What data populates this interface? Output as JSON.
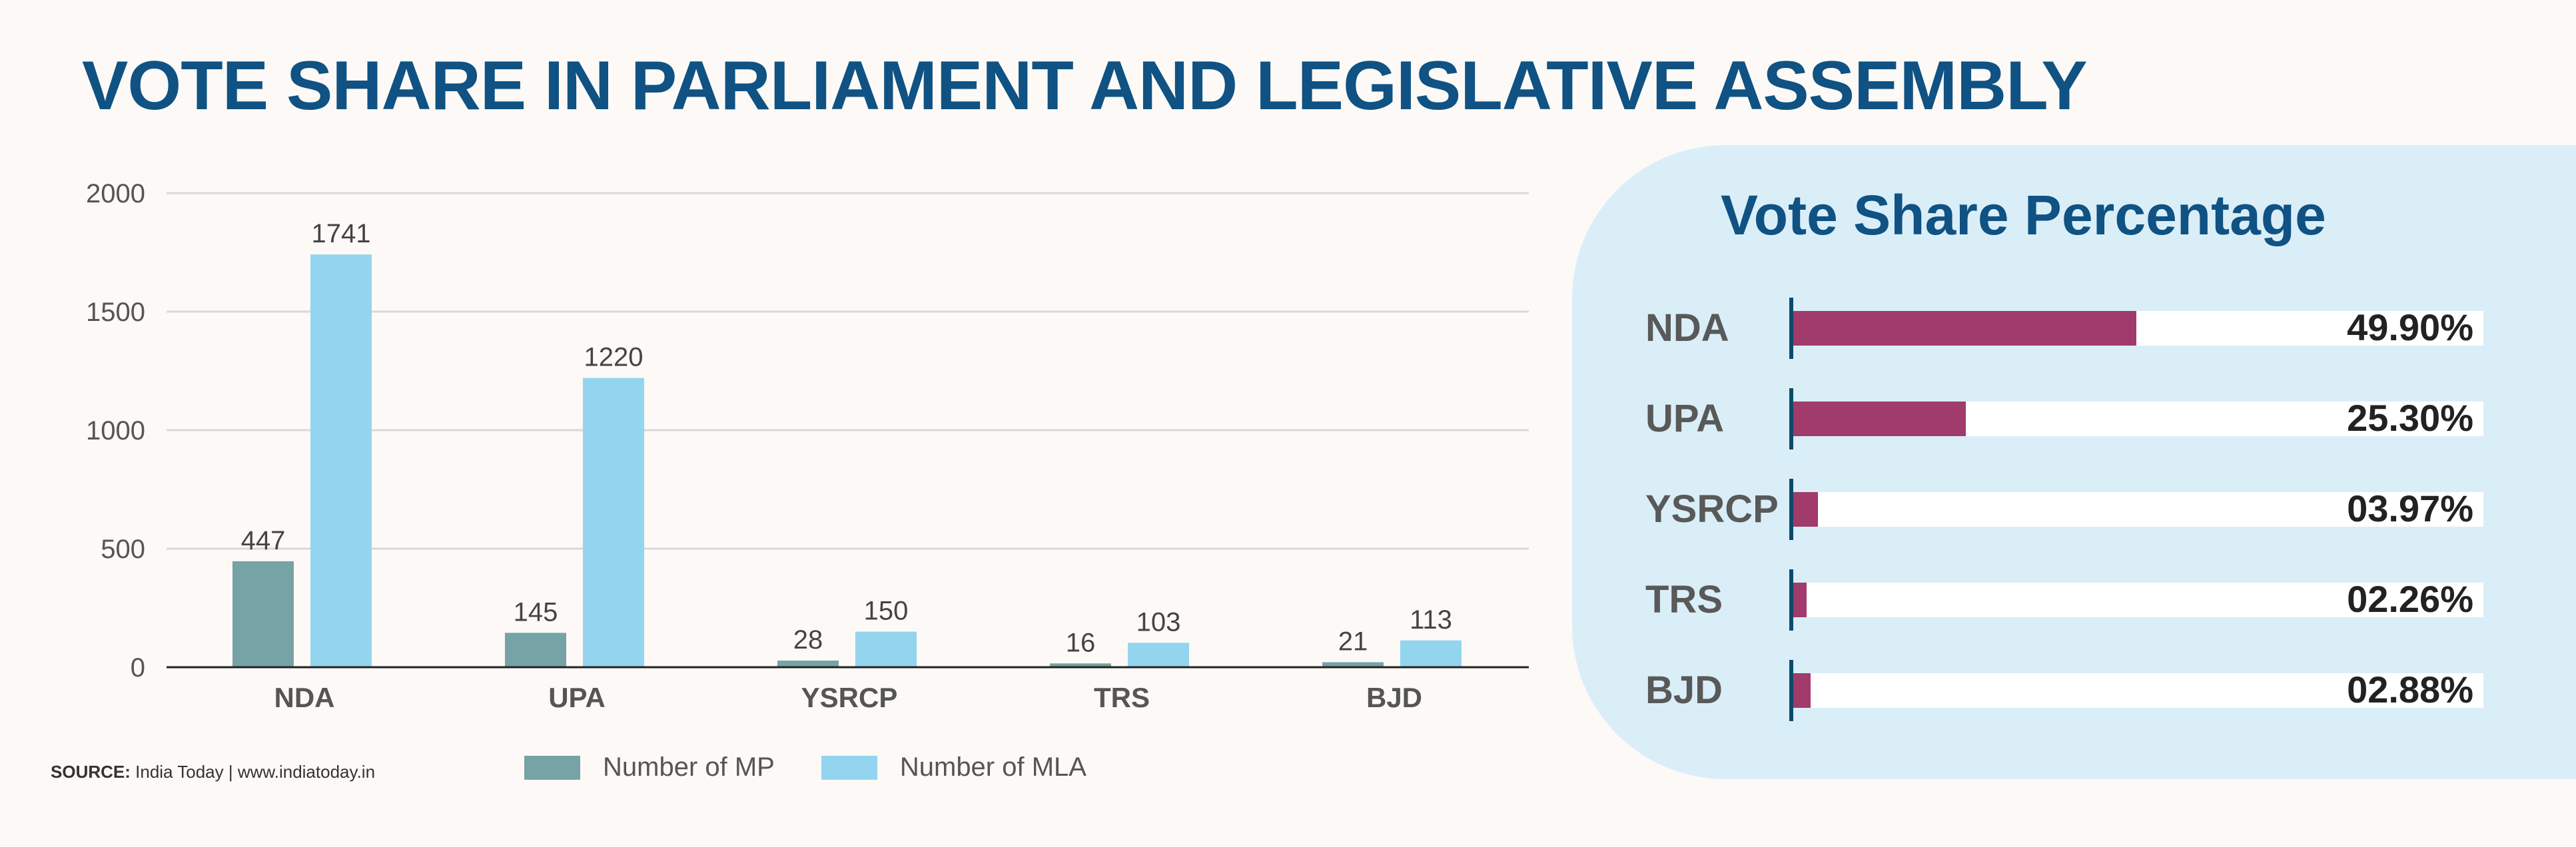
{
  "title": "VOTE SHARE IN PARLIAMENT AND LEGISLATIVE ASSEMBLY",
  "colors": {
    "mp": "#76a3a5",
    "mla": "#93d5ef",
    "pct_bar": "#a03b6b",
    "title": "#0f5283"
  },
  "chart_data": [
    {
      "type": "bar",
      "categories": [
        "NDA",
        "UPA",
        "YSRCP",
        "TRS",
        "BJD"
      ],
      "series": [
        {
          "name": "Number of MP",
          "values": [
            447,
            145,
            28,
            16,
            21
          ]
        },
        {
          "name": "Number of MLA",
          "values": [
            1741,
            1220,
            150,
            103,
            113
          ]
        }
      ],
      "yticks": [
        0,
        500,
        1000,
        1500,
        2000
      ],
      "ylim": [
        0,
        2000
      ],
      "grid": true,
      "legend": "bottom"
    },
    {
      "type": "bar",
      "orientation": "horizontal",
      "title": "Vote Share Percentage",
      "categories": [
        "NDA",
        "UPA",
        "YSRCP",
        "TRS",
        "BJD"
      ],
      "values": [
        49.9,
        25.3,
        3.97,
        2.26,
        2.88
      ],
      "labels": [
        "49.90%",
        "25.30%",
        "03.97%",
        "02.26%",
        "02.88%"
      ],
      "xlim": [
        0,
        100
      ]
    }
  ],
  "source": {
    "label": "SOURCE:",
    "text": " India Today | www.indiatoday.in"
  }
}
